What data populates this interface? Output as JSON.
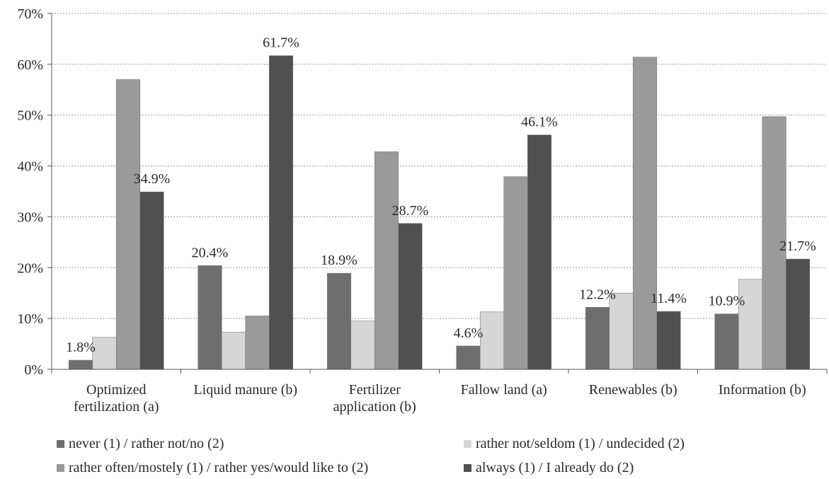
{
  "chart_data": {
    "type": "bar",
    "title": "",
    "xlabel": "",
    "ylabel": "",
    "ylim": [
      0,
      70
    ],
    "yticks": [
      0,
      10,
      20,
      30,
      40,
      50,
      60,
      70
    ],
    "ytick_labels": [
      "0%",
      "10%",
      "20%",
      "30%",
      "40%",
      "50%",
      "60%",
      "70%"
    ],
    "grid": true,
    "legend_position": "bottom",
    "categories": [
      [
        "Optimized",
        "fertilization (a)"
      ],
      [
        "Liquid manure (b)"
      ],
      [
        "Fertilizer",
        "application (b)"
      ],
      [
        "Fallow land (a)"
      ],
      [
        "Renewables (b)"
      ],
      [
        "Information (b)"
      ]
    ],
    "series": [
      {
        "name": "never (1) / rather not/no (2)",
        "color": "#6e6e6e",
        "values": [
          1.8,
          20.4,
          18.9,
          4.6,
          12.2,
          10.9
        ]
      },
      {
        "name": "rather not/seldom (1) / undecided (2)",
        "color": "#d6d6d6",
        "values": [
          6.3,
          7.3,
          9.5,
          11.3,
          15.0,
          17.7
        ]
      },
      {
        "name": "rather often/mostely (1) / rather yes/would like to (2)",
        "color": "#9a9a9a",
        "values": [
          57.0,
          10.5,
          42.8,
          37.9,
          61.4,
          49.7
        ]
      },
      {
        "name": "always (1) / I already do (2)",
        "color": "#505050",
        "values": [
          34.9,
          61.7,
          28.7,
          46.1,
          11.4,
          21.7
        ]
      }
    ],
    "data_labels": [
      {
        "category": 0,
        "series": 0,
        "text": "1.8%"
      },
      {
        "category": 0,
        "series": 3,
        "text": "34.9%"
      },
      {
        "category": 1,
        "series": 0,
        "text": "20.4%"
      },
      {
        "category": 1,
        "series": 3,
        "text": "61.7%"
      },
      {
        "category": 2,
        "series": 0,
        "text": "18.9%"
      },
      {
        "category": 2,
        "series": 3,
        "text": "28.7%"
      },
      {
        "category": 3,
        "series": 0,
        "text": "4.6%"
      },
      {
        "category": 3,
        "series": 3,
        "text": "46.1%"
      },
      {
        "category": 4,
        "series": 0,
        "text": "12.2%"
      },
      {
        "category": 4,
        "series": 3,
        "text": "11.4%"
      },
      {
        "category": 5,
        "series": 0,
        "text": "10.9%"
      },
      {
        "category": 5,
        "series": 3,
        "text": "21.7%"
      }
    ]
  }
}
